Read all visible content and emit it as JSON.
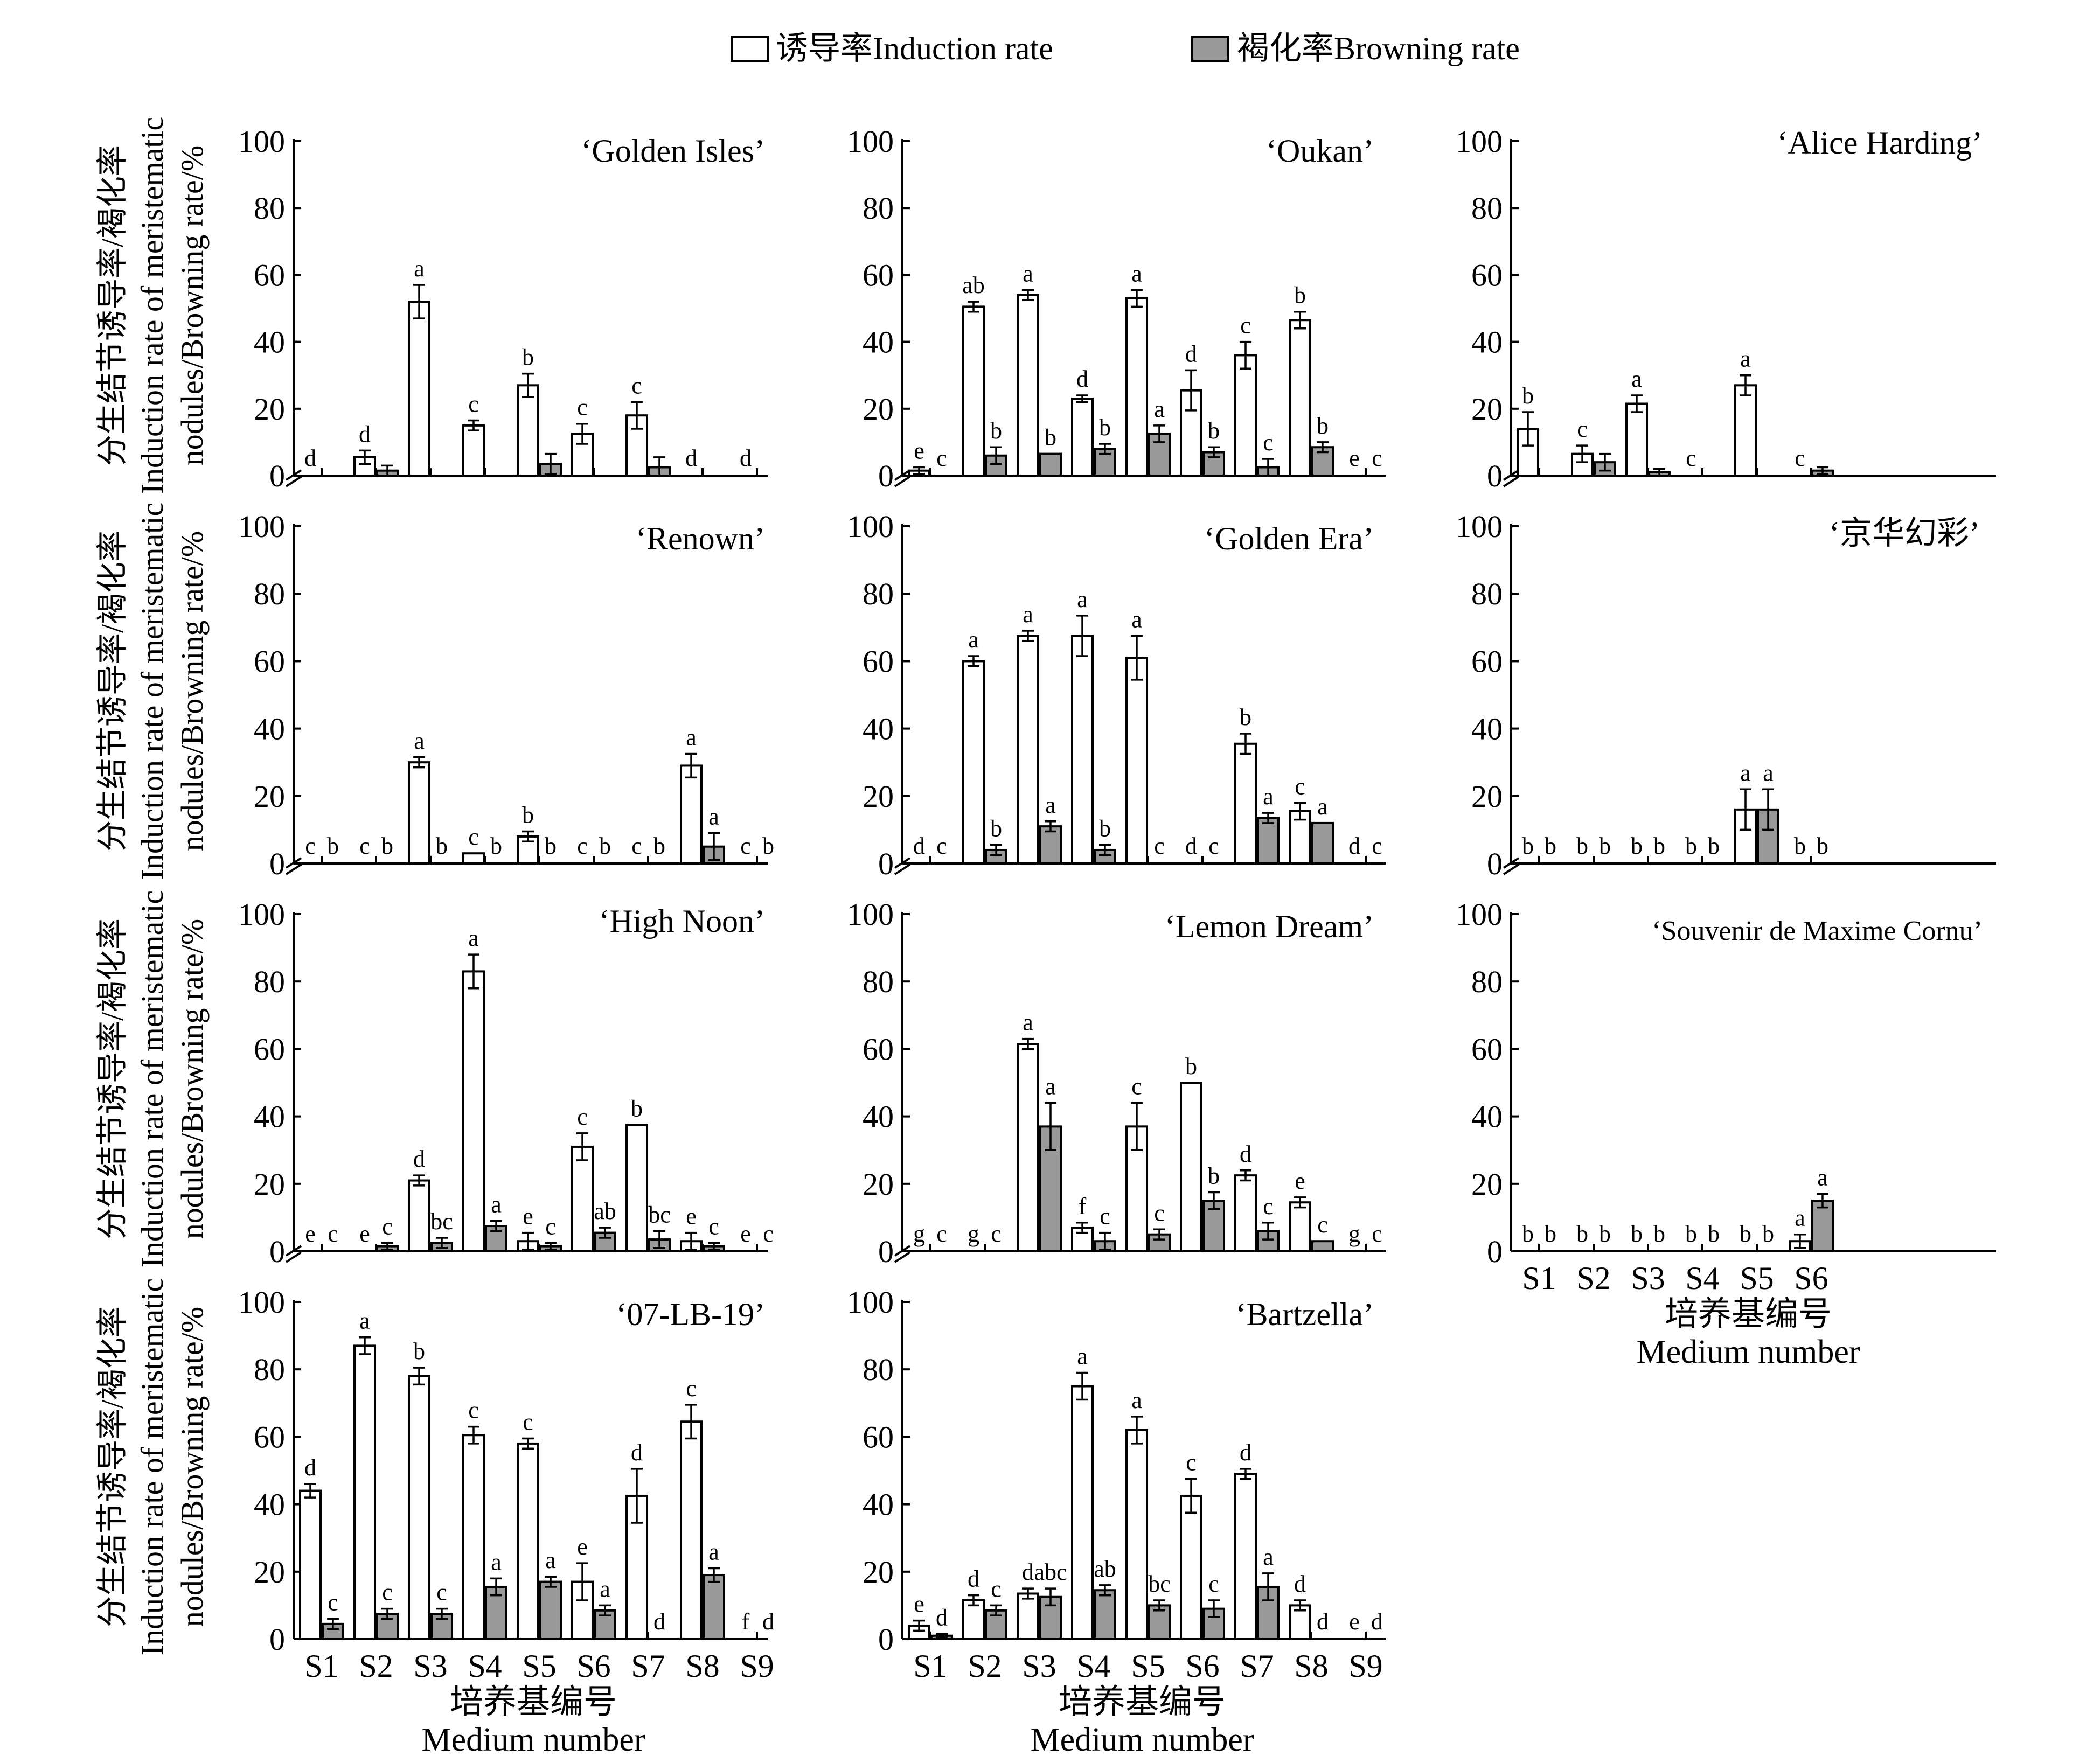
{
  "legend": {
    "induction_label": "诱导率Induction rate",
    "browning_label": "褐化率Browning rate",
    "induction_color": "#ffffff",
    "browning_color": "#999999"
  },
  "y_label": {
    "line1": "分生结节诱导率/褐化率",
    "line2": "Induction rate of meristematic",
    "line3": "nodules/Browning rate/%"
  },
  "x_label": {
    "cn": "培养基编号",
    "en": "Medium number"
  },
  "y_ticks": [
    0,
    20,
    40,
    60,
    80,
    100
  ],
  "chart_data": [
    {
      "type": "bar",
      "title": "‘Golden Isles’",
      "ylim": [
        0,
        100
      ],
      "categories": [
        "S1",
        "S2",
        "S3",
        "S4",
        "S5",
        "S6",
        "S7",
        "S8",
        "S9"
      ],
      "series": [
        {
          "name": "诱导率Induction rate",
          "values": [
            0,
            5.5,
            52,
            15,
            27,
            12.5,
            18,
            0,
            0
          ],
          "errors": [
            0,
            2,
            5,
            1.5,
            3.5,
            3,
            4,
            0,
            0
          ]
        },
        {
          "name": "褐化率Browning rate",
          "values": [
            0,
            1.5,
            0,
            0,
            3.5,
            0,
            2.5,
            0,
            0
          ],
          "errors": [
            0,
            1.5,
            0,
            0,
            3,
            0,
            3,
            0,
            0
          ]
        }
      ],
      "letters_induction": [
        "d",
        "d",
        "a",
        "c",
        "b",
        "c",
        "c",
        "d",
        "d"
      ],
      "letters_browning": [
        "",
        "",
        "",
        "",
        "",
        "",
        "",
        "",
        ""
      ]
    },
    {
      "type": "bar",
      "title": "‘Oukan’",
      "ylim": [
        0,
        100
      ],
      "categories": [
        "S1",
        "S2",
        "S3",
        "S4",
        "S5",
        "S6",
        "S7",
        "S8",
        "S9"
      ],
      "series": [
        {
          "name": "诱导率Induction rate",
          "values": [
            1.5,
            50.5,
            54,
            23,
            53,
            25.5,
            36,
            46.5,
            0
          ],
          "errors": [
            1,
            1.5,
            1.5,
            1,
            2.5,
            6,
            4,
            2.5,
            0
          ]
        },
        {
          "name": "褐化率Browning rate",
          "values": [
            0,
            6,
            6.5,
            8,
            12.5,
            7,
            2.5,
            8.5,
            0
          ],
          "errors": [
            0,
            2.5,
            0,
            1.5,
            2.5,
            1.5,
            2.5,
            1.5,
            0
          ]
        }
      ],
      "letters_induction": [
        "e",
        "ab",
        "a",
        "d",
        "a",
        "d",
        "c",
        "b",
        "e"
      ],
      "letters_browning": [
        "c",
        "b",
        "b",
        "b",
        "a",
        "b",
        "c",
        "b",
        "c"
      ]
    },
    {
      "type": "bar",
      "title": "‘Alice Harding’",
      "ylim": [
        0,
        100
      ],
      "categories": [
        "S1",
        "S2",
        "S3",
        "S4",
        "S5",
        "S6"
      ],
      "series": [
        {
          "name": "诱导率Induction rate",
          "values": [
            14,
            6.5,
            21.5,
            0,
            27,
            0
          ],
          "errors": [
            5,
            2.5,
            2.5,
            0,
            3,
            0
          ]
        },
        {
          "name": "褐化率Browning rate",
          "values": [
            0,
            4,
            1,
            0,
            0,
            1.5
          ],
          "errors": [
            0,
            2.5,
            1,
            0,
            0,
            1
          ]
        }
      ],
      "letters_induction": [
        "b",
        "c",
        "a",
        "c",
        "a",
        "c"
      ],
      "letters_browning": [
        "",
        "",
        "",
        "",
        "",
        ""
      ]
    },
    {
      "type": "bar",
      "title": "‘Renown’",
      "ylim": [
        0,
        100
      ],
      "categories": [
        "S1",
        "S2",
        "S3",
        "S4",
        "S5",
        "S6",
        "S7",
        "S8",
        "S9"
      ],
      "series": [
        {
          "name": "诱导率Induction rate",
          "values": [
            0,
            0,
            30,
            3,
            8,
            0,
            0,
            29,
            0
          ],
          "errors": [
            0,
            0,
            1.5,
            0,
            1.5,
            0,
            0,
            3.5,
            0
          ]
        },
        {
          "name": "褐化率Browning rate",
          "values": [
            0,
            0,
            0,
            0,
            0,
            0,
            0,
            5,
            0
          ],
          "errors": [
            0,
            0,
            0,
            0,
            0,
            0,
            0,
            4,
            0
          ]
        }
      ],
      "letters_induction": [
        "c",
        "c",
        "a",
        "c",
        "b",
        "c",
        "c",
        "a",
        "c"
      ],
      "letters_browning": [
        "b",
        "b",
        "b",
        "b",
        "b",
        "b",
        "b",
        "a",
        "b"
      ]
    },
    {
      "type": "bar",
      "title": "‘Golden Era’",
      "ylim": [
        0,
        100
      ],
      "categories": [
        "S1",
        "S2",
        "S3",
        "S4",
        "S5",
        "S6",
        "S7",
        "S8",
        "S9"
      ],
      "series": [
        {
          "name": "诱导率Induction rate",
          "values": [
            0,
            60,
            67.5,
            67.5,
            61,
            0,
            35.5,
            15.5,
            0
          ],
          "errors": [
            0,
            1.5,
            1.5,
            6,
            6.5,
            0,
            3,
            2.5,
            0
          ]
        },
        {
          "name": "褐化率Browning rate",
          "values": [
            0,
            4,
            11,
            4,
            0,
            0,
            13.5,
            12,
            0
          ],
          "errors": [
            0,
            1.5,
            1.5,
            1.5,
            0,
            0,
            1.5,
            0,
            0
          ]
        }
      ],
      "letters_induction": [
        "d",
        "a",
        "a",
        "a",
        "a",
        "d",
        "b",
        "c",
        "d"
      ],
      "letters_browning": [
        "c",
        "b",
        "a",
        "b",
        "c",
        "c",
        "a",
        "a",
        "c"
      ]
    },
    {
      "type": "bar",
      "title": "‘京华幻彩’",
      "ylim": [
        0,
        100
      ],
      "categories": [
        "S1",
        "S2",
        "S3",
        "S4",
        "S5",
        "S6"
      ],
      "series": [
        {
          "name": "诱导率Induction rate",
          "values": [
            0,
            0,
            0,
            0,
            16,
            0
          ],
          "errors": [
            0,
            0,
            0,
            0,
            6,
            0
          ]
        },
        {
          "name": "褐化率Browning rate",
          "values": [
            0,
            0,
            0,
            0,
            16,
            0
          ],
          "errors": [
            0,
            0,
            0,
            0,
            6,
            0
          ]
        }
      ],
      "letters_induction": [
        "b",
        "b",
        "b",
        "b",
        "a",
        "b"
      ],
      "letters_browning": [
        "b",
        "b",
        "b",
        "b",
        "a",
        "b"
      ]
    },
    {
      "type": "bar",
      "title": "‘High Noon’",
      "ylim": [
        0,
        100
      ],
      "categories": [
        "S1",
        "S2",
        "S3",
        "S4",
        "S5",
        "S6",
        "S7",
        "S8",
        "S9"
      ],
      "series": [
        {
          "name": "诱导率Induction rate",
          "values": [
            0,
            0,
            21,
            83,
            3,
            31,
            37.5,
            3,
            0
          ],
          "errors": [
            0,
            0,
            1.5,
            5,
            2.5,
            4,
            0,
            2.5,
            0
          ]
        },
        {
          "name": "褐化率Browning rate",
          "values": [
            0,
            1.5,
            2.5,
            7.5,
            1.5,
            5.5,
            3.5,
            1.5,
            0
          ],
          "errors": [
            0,
            1,
            1.5,
            1.5,
            1,
            1.5,
            2.5,
            1,
            0
          ]
        }
      ],
      "letters_induction": [
        "e",
        "e",
        "d",
        "a",
        "e",
        "c",
        "b",
        "e",
        "e"
      ],
      "letters_browning": [
        "c",
        "c",
        "bc",
        "a",
        "c",
        "ab",
        "bc",
        "c",
        "c"
      ]
    },
    {
      "type": "bar",
      "title": "‘Lemon Dream’",
      "ylim": [
        0,
        100
      ],
      "categories": [
        "S1",
        "S2",
        "S3",
        "S4",
        "S5",
        "S6",
        "S7",
        "S8",
        "S9"
      ],
      "series": [
        {
          "name": "诱导率Induction rate",
          "values": [
            0,
            0,
            61.5,
            7,
            37,
            50,
            22.5,
            14.5,
            0
          ],
          "errors": [
            0,
            0,
            1.5,
            1.5,
            7,
            0,
            1.5,
            1.5,
            0
          ]
        },
        {
          "name": "褐化率Browning rate",
          "values": [
            0,
            0,
            37,
            3,
            5,
            15,
            6,
            3,
            0
          ],
          "errors": [
            0,
            0,
            7,
            2.5,
            1.5,
            2.5,
            2.5,
            0,
            0
          ]
        }
      ],
      "letters_induction": [
        "g",
        "g",
        "a",
        "f",
        "c",
        "b",
        "d",
        "e",
        "g"
      ],
      "letters_browning": [
        "c",
        "c",
        "a",
        "c",
        "c",
        "b",
        "c",
        "c",
        "c"
      ]
    },
    {
      "type": "bar",
      "title": "‘Souvenir de Maxime Cornu’",
      "ylim": [
        0,
        100
      ],
      "categories": [
        "S1",
        "S2",
        "S3",
        "S4",
        "S5",
        "S6"
      ],
      "series": [
        {
          "name": "诱导率Induction rate",
          "values": [
            0,
            0,
            0,
            0,
            0,
            3
          ],
          "errors": [
            0,
            0,
            0,
            0,
            0,
            2
          ]
        },
        {
          "name": "褐化率Browning rate",
          "values": [
            0,
            0,
            0,
            0,
            0,
            15
          ],
          "errors": [
            0,
            0,
            0,
            0,
            0,
            2
          ]
        }
      ],
      "letters_induction": [
        "b",
        "b",
        "b",
        "b",
        "b",
        "a"
      ],
      "letters_browning": [
        "b",
        "b",
        "b",
        "b",
        "b",
        "a"
      ]
    },
    {
      "type": "bar",
      "title": "‘07-LB-19’",
      "ylim": [
        0,
        100
      ],
      "categories": [
        "S1",
        "S2",
        "S3",
        "S4",
        "S5",
        "S6",
        "S7",
        "S8",
        "S9"
      ],
      "series": [
        {
          "name": "诱导率Induction rate",
          "values": [
            44,
            87,
            78,
            60.5,
            58,
            17,
            42.5,
            64.5,
            0
          ],
          "errors": [
            2,
            2.5,
            2.5,
            2.5,
            1.5,
            5.5,
            8,
            5,
            0
          ]
        },
        {
          "name": "褐化率Browning rate",
          "values": [
            4.5,
            7.5,
            7.5,
            15.5,
            17,
            8.5,
            0,
            19,
            0
          ],
          "errors": [
            1.5,
            1.5,
            1.5,
            2.5,
            1.5,
            1.5,
            0,
            2,
            0
          ]
        }
      ],
      "letters_induction": [
        "d",
        "a",
        "b",
        "c",
        "c",
        "e",
        "d",
        "c",
        "f"
      ],
      "letters_browning": [
        "c",
        "c",
        "c",
        "a",
        "a",
        "a",
        "d",
        "a",
        "d"
      ]
    },
    {
      "type": "bar",
      "title": "‘Bartzella’",
      "ylim": [
        0,
        100
      ],
      "categories": [
        "S1",
        "S2",
        "S3",
        "S4",
        "S5",
        "S6",
        "S7",
        "S8",
        "S9"
      ],
      "series": [
        {
          "name": "诱导率Induction rate",
          "values": [
            4,
            11.5,
            13.5,
            75,
            62,
            42.5,
            49,
            10,
            0
          ],
          "errors": [
            1.5,
            1.5,
            1.5,
            4,
            4,
            5,
            1.5,
            1.5,
            0
          ]
        },
        {
          "name": "褐化率Browning rate",
          "values": [
            1,
            8.5,
            12.5,
            14.5,
            10,
            9,
            15.5,
            0,
            0
          ],
          "errors": [
            0.5,
            1.5,
            2.5,
            1.5,
            1.5,
            2.5,
            4,
            0,
            0
          ]
        }
      ],
      "letters_induction": [
        "e",
        "d",
        "d",
        "a",
        "a",
        "c",
        "d",
        "d",
        "e"
      ],
      "letters_browning": [
        "d",
        "c",
        "abc",
        "ab",
        "bc",
        "c",
        "a",
        "d",
        "d"
      ]
    }
  ]
}
